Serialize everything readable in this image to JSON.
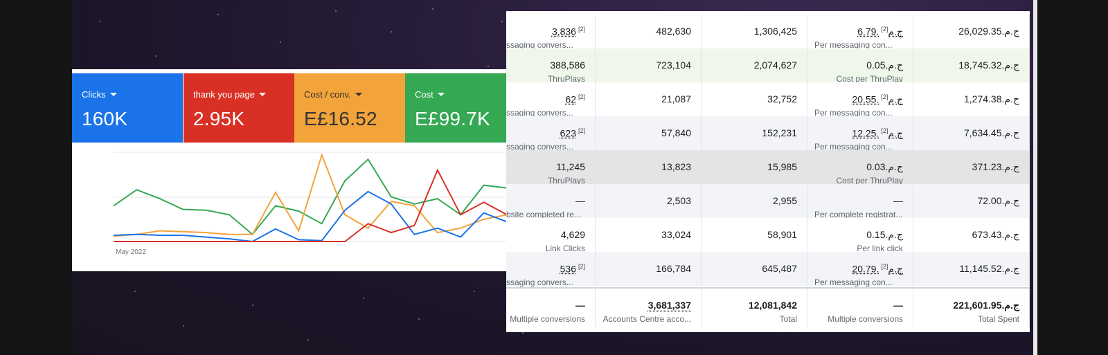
{
  "metrics": [
    {
      "label": "Clicks",
      "value": "160K",
      "color": "#1a73e8"
    },
    {
      "label": "thank you page",
      "value": "2.95K",
      "color": "#d93025"
    },
    {
      "label": "Cost / conv.",
      "value": "E£16.52",
      "color": "#f2a33a"
    },
    {
      "label": "Cost",
      "value": "E£99.7K",
      "color": "#34a853"
    }
  ],
  "chart": {
    "date_label": "May 2022",
    "series": [
      {
        "color": "#34a853",
        "values": [
          40,
          58,
          48,
          36,
          35,
          30,
          8,
          40,
          34,
          20,
          68,
          92,
          50,
          42,
          48,
          30,
          63,
          60
        ]
      },
      {
        "color": "#f2a33a",
        "values": [
          6,
          8,
          12,
          11,
          10,
          8,
          8,
          55,
          12,
          97,
          30,
          15,
          45,
          40,
          10,
          15,
          25,
          30
        ]
      },
      {
        "color": "#1a73e8",
        "values": [
          7,
          8,
          7,
          7,
          5,
          3,
          0,
          14,
          2,
          1,
          35,
          56,
          42,
          8,
          15,
          5,
          32,
          22
        ]
      },
      {
        "color": "#d93025",
        "values": [
          0,
          0,
          0,
          0,
          0,
          0,
          0,
          0,
          0,
          0,
          0,
          20,
          10,
          18,
          80,
          30,
          44,
          30
        ]
      }
    ]
  },
  "table": {
    "rows": [
      {
        "results": "3,836",
        "results_sup": "[2]",
        "results_sub": "ssaging convers...",
        "reach": "482,630",
        "impressions": "1,306,425",
        "cost_per": "6.79.ج.م",
        "cost_sup": "[2]",
        "cost_sub": "Per messaging con...",
        "spent": "26,029.35.ج.م",
        "bg": "#ffffff",
        "underline": true
      },
      {
        "results": "388,586",
        "results_sup": "",
        "results_sub": "ThruPlays",
        "reach": "723,104",
        "impressions": "2,074,627",
        "cost_per": "0.05.ج.م",
        "cost_sup": "",
        "cost_sub": "Cost per ThruPlay",
        "spent": "18,745.32.ج.م",
        "bg": "#eef7e9",
        "underline": false
      },
      {
        "results": "62",
        "results_sup": "[2]",
        "results_sub": "ssaging convers...",
        "reach": "21,087",
        "impressions": "32,752",
        "cost_per": "20.55.ج.م",
        "cost_sup": "[2]",
        "cost_sub": "Per messaging con...",
        "spent": "1,274.38.ج.م",
        "bg": "#ffffff",
        "underline": true
      },
      {
        "results": "623",
        "results_sup": "[2]",
        "results_sub": "ssaging convers...",
        "reach": "57,840",
        "impressions": "152,231",
        "cost_per": "12.25.ج.م",
        "cost_sup": "[2]",
        "cost_sub": "Per messaging con...",
        "spent": "7,634.45.ج.م",
        "bg": "#f2f4f7",
        "underline": true
      },
      {
        "results": "11,245",
        "results_sup": "",
        "results_sub": "ThruPlays",
        "reach": "13,823",
        "impressions": "15,985",
        "cost_per": "0.03.ج.م",
        "cost_sup": "",
        "cost_sub": "Cost per ThruPlay",
        "spent": "371.23.ج.م",
        "bg": "#e4e4e4",
        "underline": false
      },
      {
        "results": "—",
        "results_sup": "",
        "results_sub": "bsite completed re...",
        "reach": "2,503",
        "impressions": "2,955",
        "cost_per": "—",
        "cost_sup": "",
        "cost_sub": "Per complete registrat...",
        "spent": "72.00.ج.م",
        "bg": "#f2f4f7",
        "underline": false
      },
      {
        "results": "4,629",
        "results_sup": "",
        "results_sub": "Link Clicks",
        "reach": "33,024",
        "impressions": "58,901",
        "cost_per": "0.15.ج.م",
        "cost_sup": "",
        "cost_sub": "Per link click",
        "spent": "673.43.ج.م",
        "bg": "#ffffff",
        "underline": false
      },
      {
        "results": "536",
        "results_sup": "[2]",
        "results_sub": "ssaging convers...",
        "reach": "166,784",
        "impressions": "645,487",
        "cost_per": "20.79.ج.م",
        "cost_sup": "[2]",
        "cost_sub": "Per messaging con...",
        "spent": "11,145.52.ج.م",
        "bg": "#f2f4f7",
        "underline": true
      }
    ],
    "totals": {
      "results": "—",
      "results_sub": "Multiple conversions",
      "reach": "3,681,337",
      "reach_sub": "Accounts Centre acco...",
      "impressions": "12,081,842",
      "impressions_sub": "Total",
      "cost_per": "—",
      "cost_sub": "Multiple conversions",
      "spent": "221,601.95.ج.م",
      "spent_sub": "Total Spent"
    }
  }
}
